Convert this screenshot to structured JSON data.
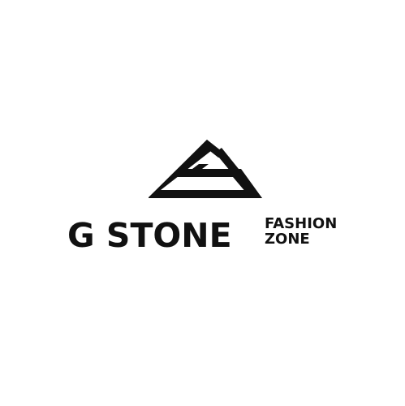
{
  "logo": {
    "icon": "triangle-g-monogram-icon",
    "brand_name": "G STONE",
    "tagline_line1": "FASHION",
    "tagline_line2": "ZONE",
    "color": "#111111",
    "background": "#ffffff"
  }
}
